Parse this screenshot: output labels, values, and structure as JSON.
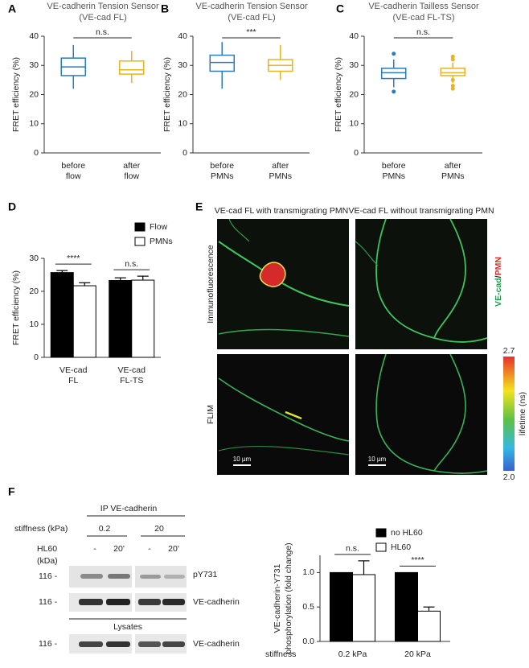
{
  "panels": {
    "labels": [
      "A",
      "B",
      "C",
      "D",
      "E",
      "F"
    ],
    "E": {
      "headings": [
        "VE-cad FL with transmigrating PMN",
        "VE-cad FL without transmigrating PMN"
      ],
      "rows": [
        "Immunofluorescence",
        "FLIM"
      ],
      "channel": [
        "VE-cad",
        "/",
        "PMN"
      ],
      "colorbar": {
        "max": "2.7",
        "min": "2.0",
        "label": "lifetime (ns)"
      },
      "scale": "10 µm"
    },
    "F": {
      "ip": "IP VE-cadherin",
      "stiffness": "stiffness (kPa)",
      "stiffness_values": [
        "0.2",
        "20"
      ],
      "treatment": "HL60",
      "lanes": [
        "-",
        "20'",
        "-",
        "20'"
      ],
      "mw_unit": "(kDa)",
      "mw": "116 -",
      "blots": [
        "pY731",
        "VE-cadherin"
      ],
      "lysates": "Lysates",
      "lysate_blot": "VE-cadherin"
    }
  },
  "chart_data": [
    {
      "type": "box",
      "title": "VE-cadherin Tension Sensor",
      "subtitle": "(VE-cad FL)",
      "ylabel": "FRET efficiency (%)",
      "categories": [
        [
          "before",
          "flow"
        ],
        [
          "after",
          "flow"
        ]
      ],
      "boxes": [
        {
          "min": 22,
          "q1": 26.5,
          "median": 29.5,
          "q3": 32.5,
          "max": 37,
          "color": "#2b7bbf"
        },
        {
          "min": 24,
          "q1": 27,
          "median": 28.5,
          "q3": 31.5,
          "max": 35,
          "color": "#e8b422"
        }
      ],
      "ylim": [
        0,
        40
      ],
      "yticks": [
        0,
        10,
        20,
        30,
        40
      ],
      "annotation": "n.s."
    },
    {
      "type": "box",
      "title": "VE-cadherin Tension Sensor",
      "subtitle": "(VE-cad FL)",
      "ylabel": "FRET efficiency (%)",
      "categories": [
        [
          "before",
          "PMNs"
        ],
        [
          "after",
          "PMNs"
        ]
      ],
      "boxes": [
        {
          "min": 22,
          "q1": 28,
          "median": 31,
          "q3": 33.5,
          "max": 38,
          "color": "#2b7bbf"
        },
        {
          "min": 25,
          "q1": 28,
          "median": 30,
          "q3": 32,
          "max": 37,
          "color": "#e8b422"
        }
      ],
      "ylim": [
        0,
        40
      ],
      "yticks": [
        0,
        10,
        20,
        30,
        40
      ],
      "annotation": "***"
    },
    {
      "type": "box",
      "title": "VE-cadherin Tailless Sensor",
      "subtitle": "(VE-cad FL-TS)",
      "ylabel": "FRET efficiency (%)",
      "categories": [
        [
          "before",
          "PMNs"
        ],
        [
          "after",
          "PMNs"
        ]
      ],
      "boxes": [
        {
          "min": 22.5,
          "q1": 25.5,
          "median": 27.5,
          "q3": 29,
          "max": 32,
          "color": "#2b7bbf",
          "outliers": [
            34,
            21
          ]
        },
        {
          "min": 24,
          "q1": 26.5,
          "median": 27.5,
          "q3": 29,
          "max": 31,
          "color": "#e8b422",
          "outliers": [
            33,
            32,
            25,
            23,
            22
          ]
        }
      ],
      "ylim": [
        0,
        40
      ],
      "yticks": [
        0,
        10,
        20,
        30,
        40
      ],
      "annotation": "n.s."
    },
    {
      "type": "bar",
      "ylabel": "FRET efficiency (%)",
      "categories": [
        [
          "VE-cad",
          "FL"
        ],
        [
          "VE-cad",
          "FL-TS"
        ]
      ],
      "series": [
        {
          "name": "Flow",
          "color": "#000000",
          "values": [
            25.7,
            23.3
          ],
          "errors": [
            0.6,
            0.8
          ]
        },
        {
          "name": "PMNs",
          "color": "#ffffff",
          "values": [
            21.7,
            23.4
          ],
          "errors": [
            0.9,
            1.2
          ]
        }
      ],
      "ylim": [
        0,
        30
      ],
      "yticks": [
        0,
        10,
        20,
        30
      ],
      "annotations": [
        "****",
        "n.s."
      ]
    },
    {
      "type": "bar",
      "ylabel": [
        "VE-cadherin-Y731",
        "phosphorylation (fold change)"
      ],
      "xlabel": "stiffness",
      "categories": [
        [
          "0.2 kPa"
        ],
        [
          "20 kPa"
        ]
      ],
      "series": [
        {
          "name": "no HL60",
          "color": "#000000",
          "values": [
            1.0,
            1.0
          ]
        },
        {
          "name": "HL60",
          "color": "#ffffff",
          "values": [
            0.97,
            0.44
          ],
          "errors": [
            0.2,
            0.06
          ]
        }
      ],
      "ylim": [
        0,
        1.25
      ],
      "yticks": [
        {
          "value": 0,
          "label": "0.0"
        },
        {
          "value": 0.5,
          "label": "0.5"
        },
        {
          "value": 1,
          "label": "1.0"
        }
      ],
      "annotations": [
        "n.s.",
        "****"
      ]
    }
  ]
}
